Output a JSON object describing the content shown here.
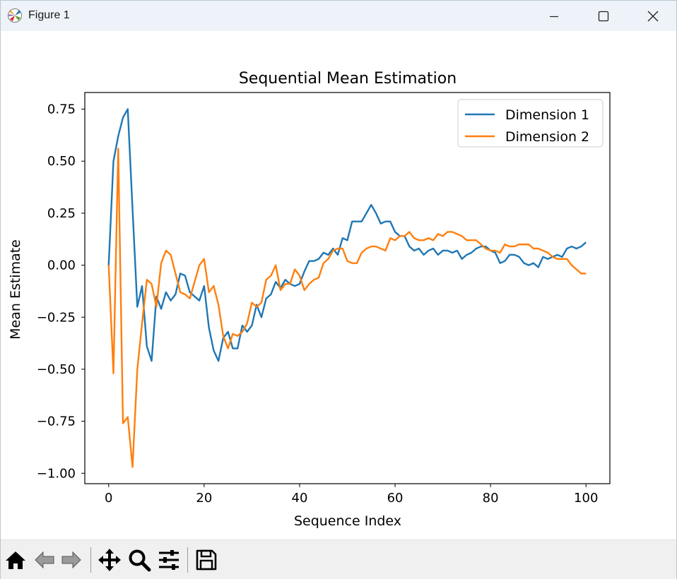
{
  "window": {
    "title": "Figure 1"
  },
  "toolbar": {
    "buttons": [
      "home-icon",
      "back-icon",
      "forward-icon",
      "pan-icon",
      "zoom-icon",
      "configure-icon",
      "save-icon"
    ]
  },
  "chart_data": {
    "type": "line",
    "title": "Sequential Mean Estimation",
    "xlabel": "Sequence Index",
    "ylabel": "Mean Estimate",
    "xlim": [
      -5,
      105
    ],
    "ylim": [
      -1.05,
      0.83
    ],
    "xticks": [
      0,
      20,
      40,
      60,
      80,
      100
    ],
    "xtick_labels": [
      "0",
      "20",
      "40",
      "60",
      "80",
      "100"
    ],
    "yticks": [
      0.75,
      0.5,
      0.25,
      0.0,
      -0.25,
      -0.5,
      -0.75,
      -1.0
    ],
    "ytick_labels": [
      "0.75",
      "0.50",
      "0.25",
      "0.00",
      "−0.25",
      "−0.50",
      "−0.75",
      "−1.00"
    ],
    "grid": false,
    "legend_position": "top-right",
    "series": [
      {
        "name": "Dimension 1",
        "color": "#1f77b4",
        "x": [
          0,
          1,
          2,
          3,
          4,
          5,
          6,
          7,
          8,
          9,
          10,
          11,
          12,
          13,
          14,
          15,
          16,
          17,
          18,
          19,
          20,
          21,
          22,
          23,
          24,
          25,
          26,
          27,
          28,
          29,
          30,
          31,
          32,
          33,
          34,
          35,
          36,
          37,
          38,
          39,
          40,
          41,
          42,
          43,
          44,
          45,
          46,
          47,
          48,
          49,
          50,
          51,
          52,
          53,
          54,
          55,
          56,
          57,
          58,
          59,
          60,
          61,
          62,
          63,
          64,
          65,
          66,
          67,
          68,
          69,
          70,
          71,
          72,
          73,
          74,
          75,
          76,
          77,
          78,
          79,
          80,
          81,
          82,
          83,
          84,
          85,
          86,
          87,
          88,
          89,
          90,
          91,
          92,
          93,
          94,
          95,
          96,
          97,
          98,
          99,
          100
        ],
        "values": [
          0.0,
          0.5,
          0.62,
          0.71,
          0.75,
          0.27,
          -0.2,
          -0.1,
          -0.39,
          -0.46,
          -0.15,
          -0.21,
          -0.13,
          -0.17,
          -0.14,
          -0.04,
          -0.05,
          -0.13,
          -0.15,
          -0.17,
          -0.1,
          -0.3,
          -0.41,
          -0.46,
          -0.35,
          -0.32,
          -0.4,
          -0.4,
          -0.29,
          -0.32,
          -0.29,
          -0.19,
          -0.25,
          -0.16,
          -0.14,
          -0.08,
          -0.11,
          -0.07,
          -0.09,
          -0.1,
          -0.09,
          -0.03,
          0.02,
          0.02,
          0.03,
          0.06,
          0.05,
          0.08,
          0.05,
          0.13,
          0.12,
          0.21,
          0.21,
          0.21,
          0.25,
          0.29,
          0.25,
          0.2,
          0.21,
          0.21,
          0.16,
          0.14,
          0.14,
          0.09,
          0.07,
          0.08,
          0.05,
          0.07,
          0.08,
          0.05,
          0.07,
          0.07,
          0.06,
          0.07,
          0.03,
          0.05,
          0.06,
          0.08,
          0.09,
          0.09,
          0.07,
          0.06,
          0.01,
          0.02,
          0.05,
          0.05,
          0.04,
          0.01,
          0.0,
          0.01,
          -0.01,
          0.04,
          0.03,
          0.04,
          0.05,
          0.04,
          0.08,
          0.09,
          0.08,
          0.09,
          0.11
        ]
      },
      {
        "name": "Dimension 2",
        "color": "#ff7f0e",
        "x": [
          0,
          1,
          2,
          3,
          4,
          5,
          6,
          7,
          8,
          9,
          10,
          11,
          12,
          13,
          14,
          15,
          16,
          17,
          18,
          19,
          20,
          21,
          22,
          23,
          24,
          25,
          26,
          27,
          28,
          29,
          30,
          31,
          32,
          33,
          34,
          35,
          36,
          37,
          38,
          39,
          40,
          41,
          42,
          43,
          44,
          45,
          46,
          47,
          48,
          49,
          50,
          51,
          52,
          53,
          54,
          55,
          56,
          57,
          58,
          59,
          60,
          61,
          62,
          63,
          64,
          65,
          66,
          67,
          68,
          69,
          70,
          71,
          72,
          73,
          74,
          75,
          76,
          77,
          78,
          79,
          80,
          81,
          82,
          83,
          84,
          85,
          86,
          87,
          88,
          89,
          90,
          91,
          92,
          93,
          94,
          95,
          96,
          97,
          98,
          99,
          100
        ],
        "values": [
          0.0,
          -0.52,
          0.56,
          -0.76,
          -0.73,
          -0.97,
          -0.5,
          -0.28,
          -0.07,
          -0.09,
          -0.2,
          0.01,
          0.07,
          0.05,
          -0.04,
          -0.13,
          -0.14,
          -0.16,
          -0.08,
          0.0,
          0.03,
          -0.13,
          -0.1,
          -0.19,
          -0.34,
          -0.4,
          -0.33,
          -0.34,
          -0.32,
          -0.28,
          -0.18,
          -0.2,
          -0.18,
          -0.07,
          -0.05,
          0.0,
          -0.12,
          -0.09,
          -0.09,
          -0.02,
          -0.05,
          -0.12,
          -0.09,
          -0.07,
          -0.06,
          0.01,
          0.03,
          0.07,
          0.08,
          0.08,
          0.02,
          0.01,
          0.01,
          0.06,
          0.08,
          0.09,
          0.09,
          0.08,
          0.07,
          0.13,
          0.12,
          0.14,
          0.14,
          0.16,
          0.13,
          0.12,
          0.12,
          0.13,
          0.12,
          0.15,
          0.14,
          0.16,
          0.16,
          0.15,
          0.14,
          0.12,
          0.12,
          0.12,
          0.1,
          0.08,
          0.07,
          0.07,
          0.06,
          0.1,
          0.09,
          0.09,
          0.1,
          0.1,
          0.1,
          0.08,
          0.08,
          0.07,
          0.06,
          0.04,
          0.03,
          0.03,
          0.03,
          0.0,
          -0.02,
          -0.04,
          -0.04
        ]
      }
    ]
  }
}
